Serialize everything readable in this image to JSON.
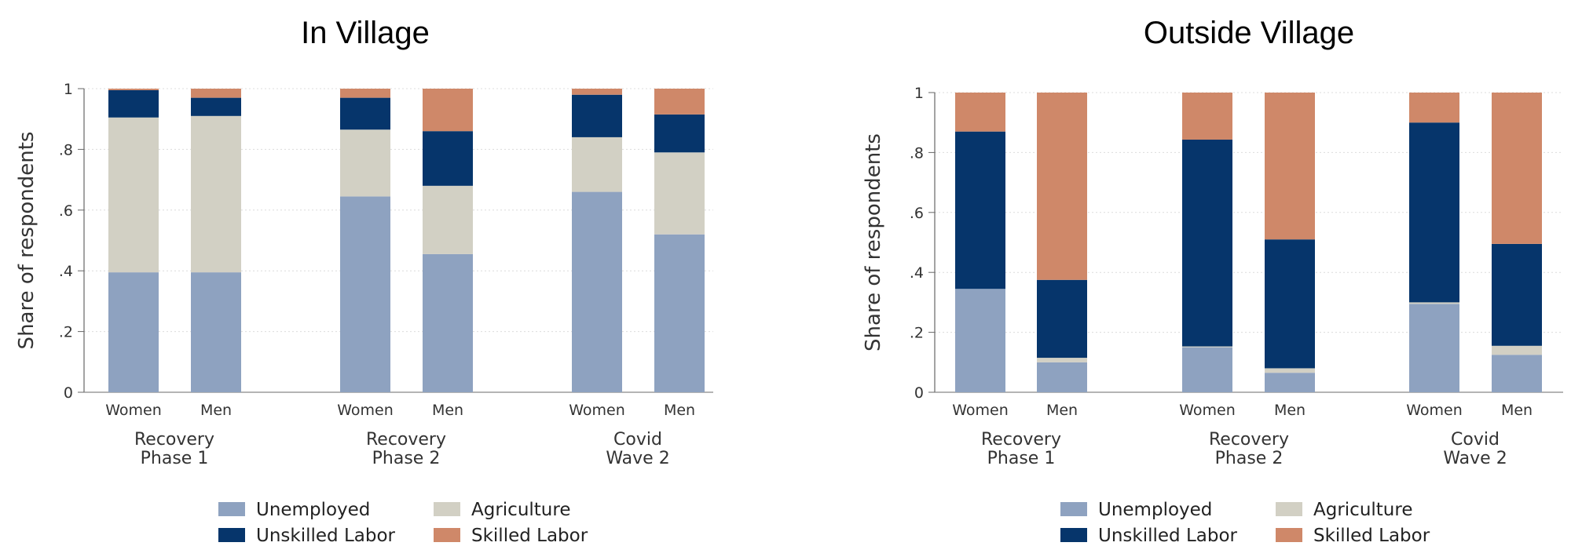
{
  "chart_data": [
    {
      "type": "bar",
      "stacked": true,
      "title": "In Village",
      "ylabel": "Share of respondents",
      "ylim": [
        0,
        1
      ],
      "yticks": [
        0,
        0.2,
        0.4,
        0.6,
        0.8,
        1
      ],
      "ytick_labels": [
        "0",
        ".2",
        ".4",
        ".6",
        ".8",
        "1"
      ],
      "groups": [
        {
          "label_lines": [
            "Recovery",
            "Phase 1"
          ],
          "bars": [
            {
              "label": "Women",
              "values": [
                0.395,
                0.51,
                0.09,
                0.005
              ]
            },
            {
              "label": "Men",
              "values": [
                0.395,
                0.515,
                0.06,
                0.03
              ]
            }
          ]
        },
        {
          "label_lines": [
            "Recovery",
            "Phase 2"
          ],
          "bars": [
            {
              "label": "Women",
              "values": [
                0.645,
                0.22,
                0.105,
                0.03
              ]
            },
            {
              "label": "Men",
              "values": [
                0.455,
                0.225,
                0.18,
                0.14
              ]
            }
          ]
        },
        {
          "label_lines": [
            "Covid",
            "Wave 2"
          ],
          "bars": [
            {
              "label": "Women",
              "values": [
                0.66,
                0.18,
                0.14,
                0.02
              ]
            },
            {
              "label": "Men",
              "values": [
                0.52,
                0.27,
                0.125,
                0.085
              ]
            }
          ]
        }
      ]
    },
    {
      "type": "bar",
      "stacked": true,
      "title": "Outside Village",
      "ylabel": "Share of respondents",
      "ylim": [
        0,
        1
      ],
      "yticks": [
        0,
        0.2,
        0.4,
        0.6,
        0.8,
        1
      ],
      "ytick_labels": [
        "0",
        ".2",
        ".4",
        ".6",
        ".8",
        "1"
      ],
      "groups": [
        {
          "label_lines": [
            "Recovery",
            "Phase 1"
          ],
          "bars": [
            {
              "label": "Women",
              "values": [
                0.345,
                0.0,
                0.525,
                0.13
              ]
            },
            {
              "label": "Men",
              "values": [
                0.1,
                0.015,
                0.26,
                0.625
              ]
            }
          ]
        },
        {
          "label_lines": [
            "Recovery",
            "Phase 2"
          ],
          "bars": [
            {
              "label": "Women",
              "values": [
                0.15,
                0.003,
                0.69,
                0.157
              ]
            },
            {
              "label": "Men",
              "values": [
                0.065,
                0.015,
                0.43,
                0.49
              ]
            }
          ]
        },
        {
          "label_lines": [
            "Covid",
            "Wave 2"
          ],
          "bars": [
            {
              "label": "Women",
              "values": [
                0.295,
                0.005,
                0.6,
                0.1
              ]
            },
            {
              "label": "Men",
              "values": [
                0.125,
                0.03,
                0.34,
                0.505
              ]
            }
          ]
        }
      ]
    }
  ],
  "series": [
    "Unemployed",
    "Agriculture",
    "Unskilled Labor",
    "Skilled Labor"
  ],
  "series_colors": [
    "#8ea2c0",
    "#d2d0c4",
    "#06356b",
    "#cf8869"
  ],
  "legend_order": [
    "Unemployed",
    "Agriculture",
    "Unskilled Labor",
    "Skilled Labor"
  ],
  "legend_position": "bottom"
}
